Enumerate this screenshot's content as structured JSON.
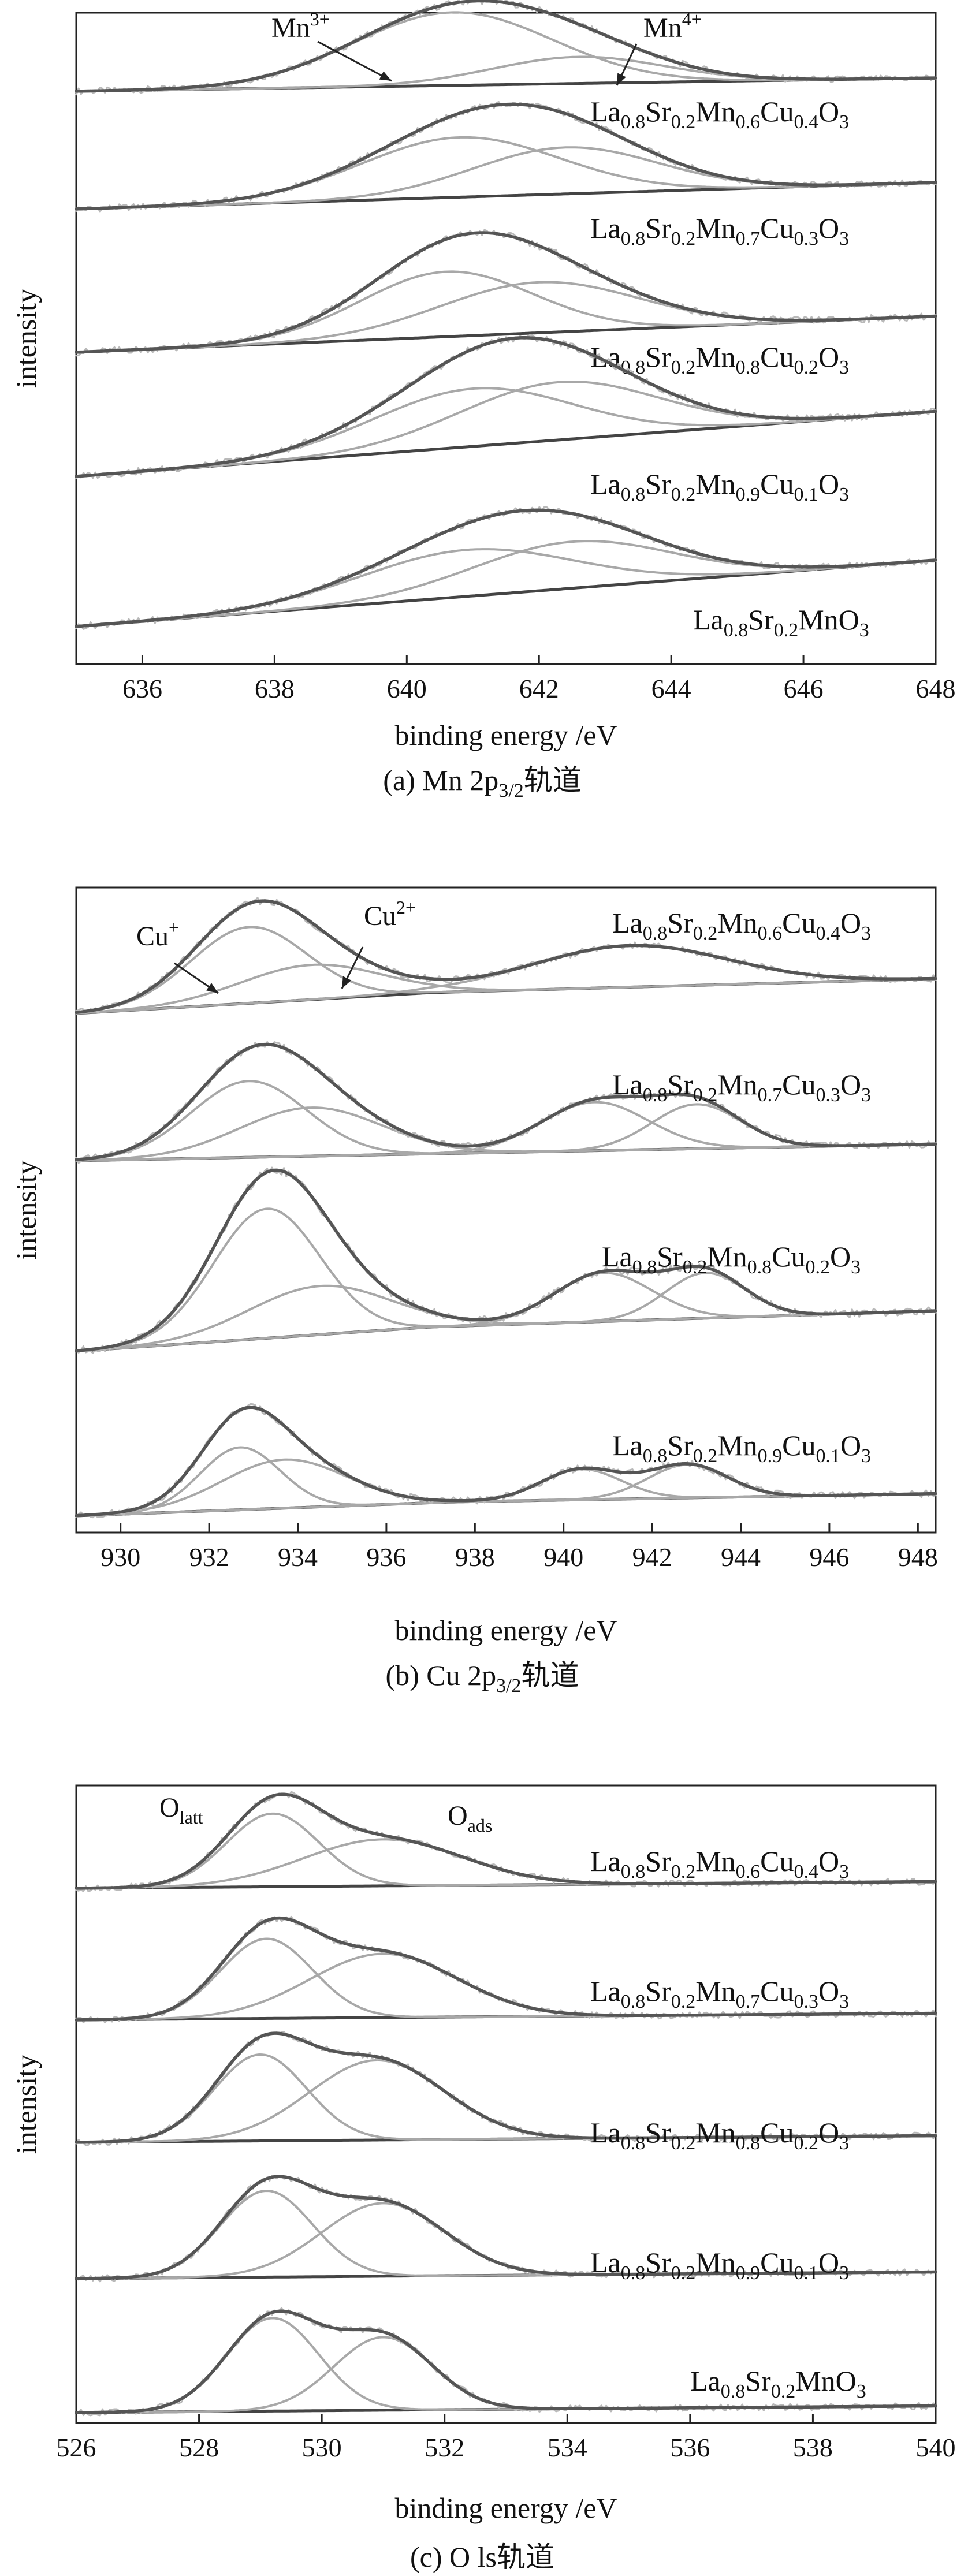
{
  "chart_data": [
    {
      "type": "line",
      "caption": "(a) Mn 2p",
      "caption_sub": "3/2",
      "caption_suffix": "轨道",
      "xlabel": "binding energy /eV",
      "ylabel": "intensity",
      "xlim": [
        635,
        648
      ],
      "xticks": [
        636,
        638,
        640,
        642,
        644,
        646,
        648
      ],
      "grid": false,
      "legend": "none",
      "peak_labels": [
        {
          "base": "Mn",
          "sup": "3+"
        },
        {
          "base": "Mn",
          "sup": "4+"
        }
      ],
      "series": [
        {
          "label_parts": [
            [
              "La",
              ""
            ],
            [
              "0.8",
              "s"
            ],
            [
              "Sr",
              ""
            ],
            [
              "0.2",
              "s"
            ],
            [
              "Mn",
              ""
            ],
            [
              "0.6",
              "s"
            ],
            [
              "Cu",
              ""
            ],
            [
              "0.4",
              "s"
            ],
            [
              "O",
              ""
            ],
            [
              "3",
              "s"
            ]
          ],
          "bg": [
            {
              "x": 635,
              "y": 0.0
            },
            {
              "x": 648,
              "y": 0.1
            }
          ],
          "peaks": [
            {
              "c": 640.7,
              "w": 1.5,
              "a": 0.55
            },
            {
              "c": 642.6,
              "w": 1.3,
              "a": 0.2
            }
          ]
        },
        {
          "label_parts": [
            [
              "La",
              ""
            ],
            [
              "0.8",
              "s"
            ],
            [
              "Sr",
              ""
            ],
            [
              "0.2",
              "s"
            ],
            [
              "Mn",
              ""
            ],
            [
              "0.7",
              "s"
            ],
            [
              "Cu",
              ""
            ],
            [
              "0.3",
              "s"
            ],
            [
              "O",
              ""
            ],
            [
              "3",
              "s"
            ]
          ],
          "bg": [
            {
              "x": 635,
              "y": 0.0
            },
            {
              "x": 648,
              "y": 0.2
            }
          ],
          "peaks": [
            {
              "c": 640.8,
              "w": 1.5,
              "a": 0.45
            },
            {
              "c": 642.4,
              "w": 1.4,
              "a": 0.35
            }
          ]
        },
        {
          "label_parts": [
            [
              "La",
              ""
            ],
            [
              "0.8",
              "s"
            ],
            [
              "Sr",
              ""
            ],
            [
              "0.2",
              "s"
            ],
            [
              "Mn",
              ""
            ],
            [
              "0.8",
              "s"
            ],
            [
              "Cu",
              ""
            ],
            [
              "0.2",
              "s"
            ],
            [
              "O",
              ""
            ],
            [
              "3",
              "s"
            ]
          ],
          "bg": [
            {
              "x": 635,
              "y": 0.0
            },
            {
              "x": 648,
              "y": 0.25
            }
          ],
          "peaks": [
            {
              "c": 640.6,
              "w": 1.3,
              "a": 0.45
            },
            {
              "c": 642.0,
              "w": 1.5,
              "a": 0.35
            }
          ]
        },
        {
          "label_parts": [
            [
              "La",
              ""
            ],
            [
              "0.8",
              "s"
            ],
            [
              "Sr",
              ""
            ],
            [
              "0.2",
              "s"
            ],
            [
              "Mn",
              ""
            ],
            [
              "0.9",
              "s"
            ],
            [
              "Cu",
              ""
            ],
            [
              "0.1",
              "s"
            ],
            [
              "O",
              ""
            ],
            [
              "3",
              "s"
            ]
          ],
          "bg": [
            {
              "x": 635,
              "y": 0.0
            },
            {
              "x": 648,
              "y": 0.45
            }
          ],
          "peaks": [
            {
              "c": 641.0,
              "w": 1.5,
              "a": 0.4
            },
            {
              "c": 642.3,
              "w": 1.5,
              "a": 0.4
            }
          ]
        },
        {
          "label_parts": [
            [
              "La",
              ""
            ],
            [
              "0.8",
              "s"
            ],
            [
              "Sr",
              ""
            ],
            [
              "0.2",
              "s"
            ],
            [
              "MnO",
              ""
            ],
            [
              "3",
              "s"
            ]
          ],
          "bg": [
            {
              "x": 635,
              "y": 0.0
            },
            {
              "x": 648,
              "y": 0.5
            }
          ],
          "peaks": [
            {
              "c": 640.9,
              "w": 1.6,
              "a": 0.35
            },
            {
              "c": 642.5,
              "w": 1.5,
              "a": 0.35
            }
          ]
        }
      ]
    },
    {
      "type": "line",
      "caption": "(b) Cu 2p",
      "caption_sub": "3/2",
      "caption_suffix": "轨道",
      "xlabel": "binding energy /eV",
      "ylabel": "intensity",
      "xlim": [
        929,
        948.4
      ],
      "xticks": [
        930,
        932,
        934,
        936,
        938,
        940,
        942,
        944,
        946,
        948
      ],
      "grid": false,
      "legend": "none",
      "peak_labels": [
        {
          "base": "Cu",
          "sup": "+"
        },
        {
          "base": "Cu",
          "sup": "2+"
        }
      ],
      "series": [
        {
          "label_parts": [
            [
              "La",
              ""
            ],
            [
              "0.8",
              "s"
            ],
            [
              "Sr",
              ""
            ],
            [
              "0.2",
              "s"
            ],
            [
              "Mn",
              ""
            ],
            [
              "0.6",
              "s"
            ],
            [
              "Cu",
              ""
            ],
            [
              "0.4",
              "s"
            ],
            [
              "O",
              ""
            ],
            [
              "3",
              "s"
            ]
          ],
          "bg": [
            {
              "x": 929,
              "y": 0.0
            },
            {
              "x": 937,
              "y": 0.15
            },
            {
              "x": 948.4,
              "y": 0.25
            }
          ],
          "peaks": [
            {
              "c": 932.9,
              "w": 1.3,
              "a": 0.55
            },
            {
              "c": 934.3,
              "w": 1.6,
              "a": 0.25
            }
          ],
          "sat": [
            {
              "c": 941.5,
              "w": 2.2,
              "a": 0.3
            }
          ]
        },
        {
          "label_parts": [
            [
              "La",
              ""
            ],
            [
              "0.8",
              "s"
            ],
            [
              "Sr",
              ""
            ],
            [
              "0.2",
              "s"
            ],
            [
              "Mn",
              ""
            ],
            [
              "0.7",
              "s"
            ],
            [
              "Cu",
              ""
            ],
            [
              "0.3",
              "s"
            ],
            [
              "O",
              ""
            ],
            [
              "3",
              "s"
            ]
          ],
          "bg": [
            {
              "x": 929,
              "y": 0.0
            },
            {
              "x": 948.4,
              "y": 0.12
            }
          ],
          "peaks": [
            {
              "c": 932.9,
              "w": 1.3,
              "a": 0.55
            },
            {
              "c": 934.3,
              "w": 1.6,
              "a": 0.35
            }
          ],
          "sat": [
            {
              "c": 940.7,
              "w": 1.2,
              "a": 0.35
            },
            {
              "c": 943.0,
              "w": 1.0,
              "a": 0.32
            }
          ]
        },
        {
          "label_parts": [
            [
              "La",
              ""
            ],
            [
              "0.8",
              "s"
            ],
            [
              "Sr",
              ""
            ],
            [
              "0.2",
              "s"
            ],
            [
              "Mn",
              ""
            ],
            [
              "0.8",
              "s"
            ],
            [
              "Cu",
              ""
            ],
            [
              "0.2",
              "s"
            ],
            [
              "O",
              ""
            ],
            [
              "3",
              "s"
            ]
          ],
          "bg": [
            {
              "x": 929,
              "y": 0.0
            },
            {
              "x": 937,
              "y": 0.15
            },
            {
              "x": 948.4,
              "y": 0.25
            }
          ],
          "peaks": [
            {
              "c": 933.3,
              "w": 1.2,
              "a": 0.8
            },
            {
              "c": 934.5,
              "w": 1.6,
              "a": 0.3
            }
          ],
          "sat": [
            {
              "c": 940.9,
              "w": 1.1,
              "a": 0.3
            },
            {
              "c": 943.2,
              "w": 0.9,
              "a": 0.28
            }
          ]
        },
        {
          "label_parts": [
            [
              "La",
              ""
            ],
            [
              "0.8",
              "s"
            ],
            [
              "Sr",
              ""
            ],
            [
              "0.2",
              "s"
            ],
            [
              "Mn",
              ""
            ],
            [
              "0.9",
              "s"
            ],
            [
              "Cu",
              ""
            ],
            [
              "0.1",
              "s"
            ],
            [
              "O",
              ""
            ],
            [
              "3",
              "s"
            ]
          ],
          "bg": [
            {
              "x": 929,
              "y": 0.0
            },
            {
              "x": 937.5,
              "y": 0.1
            },
            {
              "x": 948.4,
              "y": 0.16
            }
          ],
          "peaks": [
            {
              "c": 932.7,
              "w": 0.9,
              "a": 0.45
            },
            {
              "c": 933.7,
              "w": 1.4,
              "a": 0.35
            }
          ],
          "sat": [
            {
              "c": 940.4,
              "w": 0.9,
              "a": 0.22
            },
            {
              "c": 942.8,
              "w": 0.9,
              "a": 0.24
            }
          ]
        }
      ]
    },
    {
      "type": "line",
      "caption": "(c) O ls",
      "caption_sub": "",
      "caption_suffix": "轨道",
      "xlabel": "binding energy /eV",
      "ylabel": "intensity",
      "xlim": [
        526,
        540
      ],
      "xticks": [
        526,
        528,
        530,
        532,
        534,
        536,
        538,
        540
      ],
      "grid": false,
      "legend": "none",
      "peak_labels": [
        {
          "base": "O",
          "sub": "latt"
        },
        {
          "base": "O",
          "sub": "ads"
        }
      ],
      "series": [
        {
          "label_parts": [
            [
              "La",
              ""
            ],
            [
              "0.8",
              "s"
            ],
            [
              "Sr",
              ""
            ],
            [
              "0.2",
              "s"
            ],
            [
              "Mn",
              ""
            ],
            [
              "0.6",
              "s"
            ],
            [
              "Cu",
              ""
            ],
            [
              "0.4",
              "s"
            ],
            [
              "O",
              ""
            ],
            [
              "3",
              "s"
            ]
          ],
          "bg": [
            {
              "x": 526,
              "y": 0.0
            },
            {
              "x": 540,
              "y": 0.05
            }
          ],
          "peaks": [
            {
              "c": 529.2,
              "w": 0.75,
              "a": 0.55
            },
            {
              "c": 531.0,
              "w": 1.3,
              "a": 0.35
            }
          ]
        },
        {
          "label_parts": [
            [
              "La",
              ""
            ],
            [
              "0.8",
              "s"
            ],
            [
              "Sr",
              ""
            ],
            [
              "0.2",
              "s"
            ],
            [
              "Mn",
              ""
            ],
            [
              "0.7",
              "s"
            ],
            [
              "Cu",
              ""
            ],
            [
              "0.3",
              "s"
            ],
            [
              "O",
              ""
            ],
            [
              "3",
              "s"
            ]
          ],
          "bg": [
            {
              "x": 526,
              "y": 0.0
            },
            {
              "x": 540,
              "y": 0.05
            }
          ],
          "peaks": [
            {
              "c": 529.1,
              "w": 0.75,
              "a": 0.6
            },
            {
              "c": 531.0,
              "w": 1.2,
              "a": 0.48
            }
          ]
        },
        {
          "label_parts": [
            [
              "La",
              ""
            ],
            [
              "0.8",
              "s"
            ],
            [
              "Sr",
              ""
            ],
            [
              "0.2",
              "s"
            ],
            [
              "Mn",
              ""
            ],
            [
              "0.8",
              "s"
            ],
            [
              "Cu",
              ""
            ],
            [
              "0.2",
              "s"
            ],
            [
              "O",
              ""
            ],
            [
              "3",
              "s"
            ]
          ],
          "bg": [
            {
              "x": 526,
              "y": 0.0
            },
            {
              "x": 540,
              "y": 0.05
            }
          ],
          "peaks": [
            {
              "c": 529.0,
              "w": 0.75,
              "a": 0.65
            },
            {
              "c": 530.9,
              "w": 1.1,
              "a": 0.6
            }
          ]
        },
        {
          "label_parts": [
            [
              "La",
              ""
            ],
            [
              "0.8",
              "s"
            ],
            [
              "Sr",
              ""
            ],
            [
              "0.2",
              "s"
            ],
            [
              "Mn",
              ""
            ],
            [
              "0.9",
              "s"
            ],
            [
              "Cu",
              ""
            ],
            [
              "0.1",
              "s"
            ],
            [
              "O",
              ""
            ],
            [
              "3",
              "s"
            ]
          ],
          "bg": [
            {
              "x": 526,
              "y": 0.0
            },
            {
              "x": 540,
              "y": 0.05
            }
          ],
          "peaks": [
            {
              "c": 529.1,
              "w": 0.75,
              "a": 0.65
            },
            {
              "c": 531.0,
              "w": 1.0,
              "a": 0.55
            }
          ]
        },
        {
          "label_parts": [
            [
              "La",
              ""
            ],
            [
              "0.8",
              "s"
            ],
            [
              "Sr",
              ""
            ],
            [
              "0.2",
              "s"
            ],
            [
              "MnO",
              ""
            ],
            [
              "3",
              "s"
            ]
          ],
          "bg": [
            {
              "x": 526,
              "y": 0.0
            },
            {
              "x": 540,
              "y": 0.05
            }
          ],
          "peaks": [
            {
              "c": 529.2,
              "w": 0.75,
              "a": 0.7
            },
            {
              "c": 531.0,
              "w": 0.8,
              "a": 0.55
            }
          ]
        }
      ]
    }
  ]
}
